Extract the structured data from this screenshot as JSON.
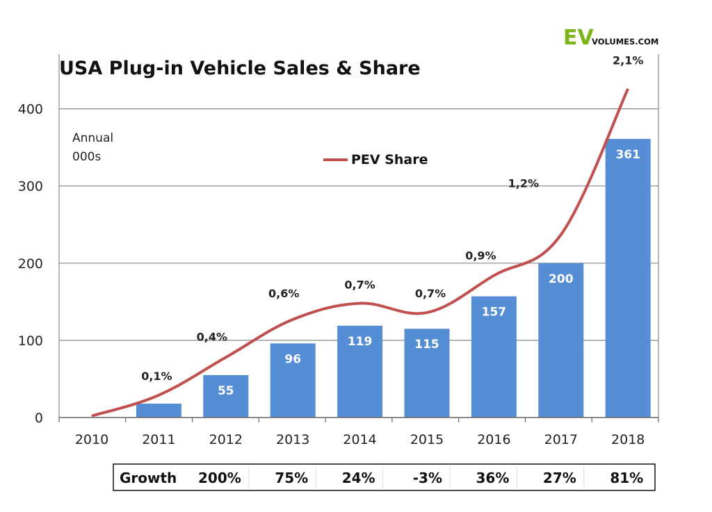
{
  "logo": {
    "ev": "EV",
    "rest": "VOLUMES.COM"
  },
  "chart_data": {
    "type": "bar",
    "title": "USA Plug-in Vehicle Sales & Share",
    "unit_note": [
      "Annual",
      "000s"
    ],
    "categories": [
      "2010",
      "2011",
      "2012",
      "2013",
      "2014",
      "2015",
      "2016",
      "2017",
      "2018"
    ],
    "ylim": [
      0,
      440
    ],
    "yticks": [
      0,
      100,
      200,
      300,
      400
    ],
    "grid": true,
    "series": [
      {
        "type": "bar",
        "values": [
          0,
          18,
          55,
          96,
          119,
          115,
          157,
          200,
          361
        ],
        "labels": [
          "",
          "",
          "55",
          "96",
          "119",
          "115",
          "157",
          "200",
          "361"
        ],
        "color": "#558ed5"
      },
      {
        "type": "line",
        "name": "PEV Share",
        "color": "#c0504d",
        "plot_values": [
          2,
          29,
          78,
          127,
          148,
          136,
          184,
          237,
          426
        ],
        "labels": [
          "",
          "0,1%",
          "0,4%",
          "0,6%",
          "0,7%",
          "0,7%",
          "0,9%",
          "1,2%",
          "2,1%"
        ]
      }
    ],
    "legend": {
      "position": "top-center",
      "entries": [
        "PEV Share"
      ]
    },
    "growth_table": {
      "label": "Growth",
      "values": [
        "200%",
        "75%",
        "24%",
        "-3%",
        "36%",
        "27%",
        "81%"
      ]
    }
  }
}
